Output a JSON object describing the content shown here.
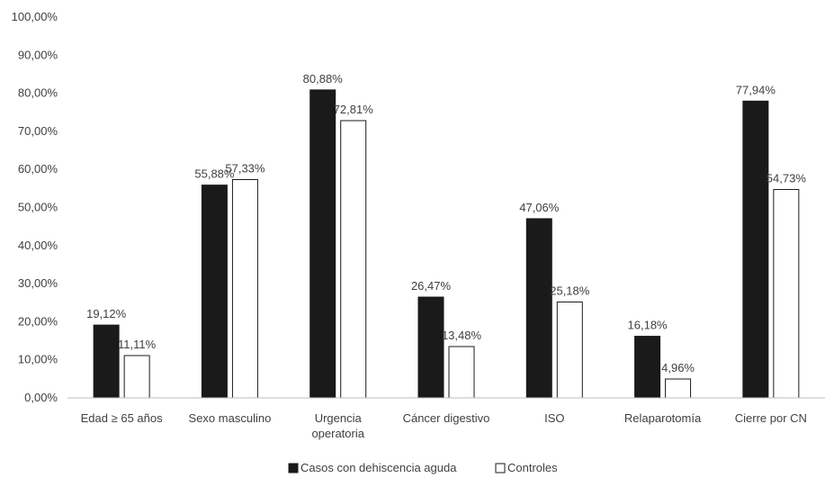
{
  "chart_data": {
    "type": "bar",
    "categories": [
      "Edad ≥ 65 años",
      "Sexo masculino",
      "Urgencia operatoria",
      "Cáncer digestivo",
      "ISO",
      "Relaparotomía",
      "Cierre por CN"
    ],
    "series": [
      {
        "name": "Casos con dehiscencia aguda",
        "color": "#1a1a1a",
        "values": [
          19.12,
          55.88,
          80.88,
          26.47,
          47.06,
          16.18,
          77.94
        ],
        "labels": [
          "19,12%",
          "55,88%",
          "80,88%",
          "26,47%",
          "47,06%",
          "16,18%",
          "77,94%"
        ]
      },
      {
        "name": "Controles",
        "color": "#ffffff",
        "values": [
          11.11,
          57.33,
          72.81,
          13.48,
          25.18,
          4.96,
          54.73
        ],
        "labels": [
          "11,11%",
          "57,33%",
          "72,81%",
          "13,48%",
          "25,18%",
          "4,96%",
          "54,73%"
        ]
      }
    ],
    "ylim": [
      0,
      100
    ],
    "yticks": [
      0,
      10,
      20,
      30,
      40,
      50,
      60,
      70,
      80,
      90,
      100
    ],
    "ytick_labels": [
      "0,00%",
      "10,00%",
      "20,00%",
      "30,00%",
      "40,00%",
      "50,00%",
      "60,00%",
      "70,00%",
      "80,00%",
      "90,00%",
      "100,00%"
    ],
    "grid": false,
    "legend": "bottom"
  }
}
